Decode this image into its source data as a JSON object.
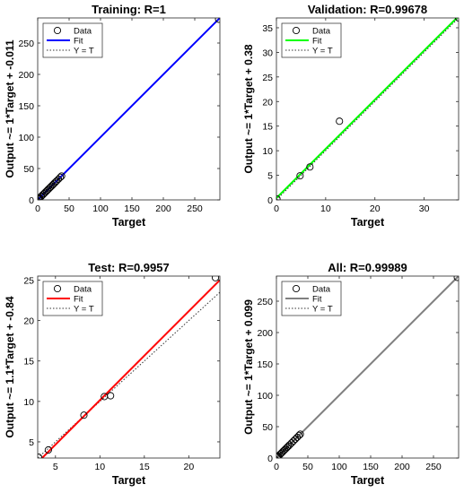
{
  "chart_data": [
    {
      "type": "scatter",
      "title": "Training: R=1",
      "xlabel": "Target",
      "ylabel": "Output ~= 1*Target + -0.011",
      "xlim": [
        0,
        290
      ],
      "ylim": [
        0,
        290
      ],
      "xticks": [
        0,
        50,
        100,
        150,
        200,
        250
      ],
      "yticks": [
        0,
        50,
        100,
        150,
        200,
        250
      ],
      "fit_color": "#0000ff",
      "fit": {
        "slope": 1,
        "intercept": -0.011
      },
      "legend": [
        "Data",
        "Fit",
        "Y = T"
      ],
      "legend_position": "top-left",
      "points": [
        [
          1,
          1
        ],
        [
          2,
          2
        ],
        [
          3,
          3
        ],
        [
          5,
          5
        ],
        [
          6,
          6
        ],
        [
          8,
          8
        ],
        [
          10,
          10
        ],
        [
          12,
          12
        ],
        [
          14,
          14
        ],
        [
          16,
          16
        ],
        [
          18,
          18
        ],
        [
          20,
          20
        ],
        [
          22,
          22
        ],
        [
          24,
          24
        ],
        [
          26,
          26
        ],
        [
          28,
          28
        ],
        [
          30,
          30
        ],
        [
          33,
          33
        ],
        [
          36,
          36
        ],
        [
          38,
          38
        ],
        [
          288,
          288
        ]
      ]
    },
    {
      "type": "scatter",
      "title": "Validation: R=0.99678",
      "xlabel": "Target",
      "ylabel": "Output ~= 1*Target + 0.38",
      "xlim": [
        0,
        37
      ],
      "ylim": [
        0,
        37
      ],
      "xticks": [
        0,
        10,
        20,
        30
      ],
      "yticks": [
        0,
        5,
        10,
        15,
        20,
        25,
        30,
        35
      ],
      "fit_color": "#00ff00",
      "fit": {
        "slope": 1,
        "intercept": 0.38
      },
      "legend": [
        "Data",
        "Fit",
        "Y = T"
      ],
      "legend_position": "top-left",
      "points": [
        [
          0.1,
          0.2
        ],
        [
          4.8,
          4.9
        ],
        [
          6.8,
          6.7
        ],
        [
          12.8,
          16
        ],
        [
          37,
          37
        ]
      ]
    },
    {
      "type": "scatter",
      "title": "Test: R=0.9957",
      "xlabel": "Target",
      "ylabel": "Output ~= 1.1*Target + -0.84",
      "xlim": [
        3,
        23.5
      ],
      "ylim": [
        3,
        25.5
      ],
      "xticks": [
        5,
        10,
        15,
        20
      ],
      "yticks": [
        5,
        10,
        15,
        20,
        25
      ],
      "fit_color": "#ff0000",
      "fit": {
        "slope": 1.1,
        "intercept": -0.84
      },
      "legend": [
        "Data",
        "Fit",
        "Y = T"
      ],
      "legend_position": "top-left",
      "points": [
        [
          3.1,
          3.1
        ],
        [
          4.2,
          4.0
        ],
        [
          8.2,
          8.3
        ],
        [
          10.5,
          10.6
        ],
        [
          11.2,
          10.7
        ],
        [
          23,
          25.3
        ]
      ]
    },
    {
      "type": "scatter",
      "title": "All: R=0.99989",
      "xlabel": "Target",
      "ylabel": "Output ~= 1*Target + 0.099",
      "xlim": [
        0,
        290
      ],
      "ylim": [
        0,
        290
      ],
      "xticks": [
        0,
        50,
        100,
        150,
        200,
        250
      ],
      "yticks": [
        0,
        50,
        100,
        150,
        200,
        250
      ],
      "fit_color": "#808080",
      "fit": {
        "slope": 1,
        "intercept": 0.099
      },
      "legend": [
        "Data",
        "Fit",
        "Y = T"
      ],
      "legend_position": "top-left",
      "points": [
        [
          1,
          1
        ],
        [
          2,
          2
        ],
        [
          3,
          3
        ],
        [
          5,
          5
        ],
        [
          7,
          7
        ],
        [
          9,
          9
        ],
        [
          11,
          11
        ],
        [
          13,
          13
        ],
        [
          15,
          15
        ],
        [
          17,
          17
        ],
        [
          19,
          19
        ],
        [
          21,
          21
        ],
        [
          24,
          24
        ],
        [
          27,
          27
        ],
        [
          30,
          30
        ],
        [
          33,
          33
        ],
        [
          36,
          36
        ],
        [
          38,
          38
        ],
        [
          288,
          288
        ]
      ]
    }
  ]
}
